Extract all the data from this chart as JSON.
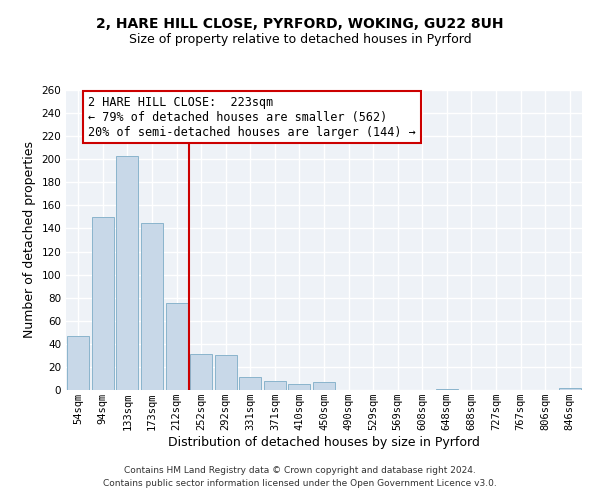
{
  "title": "2, HARE HILL CLOSE, PYRFORD, WOKING, GU22 8UH",
  "subtitle": "Size of property relative to detached houses in Pyrford",
  "xlabel": "Distribution of detached houses by size in Pyrford",
  "ylabel": "Number of detached properties",
  "bar_color": "#c8d8e8",
  "bar_edgecolor": "#8ab4cc",
  "bg_color": "#eef2f7",
  "grid_color": "#ffffff",
  "categories": [
    "54sqm",
    "94sqm",
    "133sqm",
    "173sqm",
    "212sqm",
    "252sqm",
    "292sqm",
    "331sqm",
    "371sqm",
    "410sqm",
    "450sqm",
    "490sqm",
    "529sqm",
    "569sqm",
    "608sqm",
    "648sqm",
    "688sqm",
    "727sqm",
    "767sqm",
    "806sqm",
    "846sqm"
  ],
  "values": [
    47,
    150,
    203,
    145,
    75,
    31,
    30,
    11,
    8,
    5,
    7,
    0,
    0,
    0,
    0,
    1,
    0,
    0,
    0,
    0,
    2
  ],
  "ylim": [
    0,
    260
  ],
  "yticks": [
    0,
    20,
    40,
    60,
    80,
    100,
    120,
    140,
    160,
    180,
    200,
    220,
    240,
    260
  ],
  "vline_x": 4.5,
  "vline_color": "#cc0000",
  "annotation_box_text": "2 HARE HILL CLOSE:  223sqm\n← 79% of detached houses are smaller (562)\n20% of semi-detached houses are larger (144) →",
  "footer_line1": "Contains HM Land Registry data © Crown copyright and database right 2024.",
  "footer_line2": "Contains public sector information licensed under the Open Government Licence v3.0.",
  "title_fontsize": 10,
  "subtitle_fontsize": 9,
  "axis_label_fontsize": 9,
  "tick_fontsize": 7.5,
  "annotation_fontsize": 8.5,
  "footer_fontsize": 6.5
}
